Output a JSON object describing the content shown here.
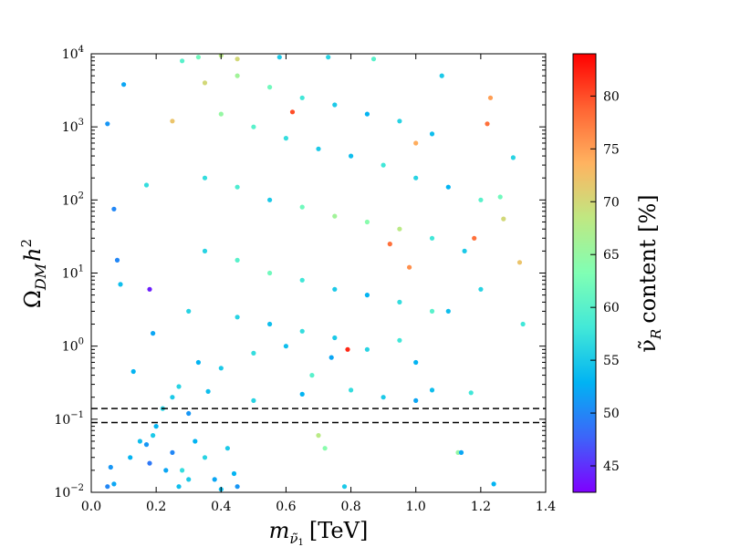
{
  "chart_data": {
    "type": "scatter",
    "title": "",
    "xlabel": "m_ν̃1 [TeV]",
    "ylabel": "Ω_DM h²",
    "xlim": [
      0.0,
      1.4
    ],
    "ylim": [
      0.01,
      10000
    ],
    "yscale": "log",
    "x_ticks": [
      "0.0",
      "0.2",
      "0.4",
      "0.6",
      "0.8",
      "1.0",
      "1.2",
      "1.4"
    ],
    "y_ticks": [
      {
        "base": "10",
        "exp": "−2"
      },
      {
        "base": "10",
        "exp": "−1"
      },
      {
        "base": "10",
        "exp": "0"
      },
      {
        "base": "10",
        "exp": "1"
      },
      {
        "base": "10",
        "exp": "2"
      },
      {
        "base": "10",
        "exp": "3"
      },
      {
        "base": "10",
        "exp": "4"
      }
    ],
    "reference_lines": {
      "style": "dashed",
      "color": "#000000",
      "y": [
        0.09,
        0.14
      ]
    },
    "colorbar": {
      "label": "ν̃R content [%]",
      "range": [
        42.5,
        84
      ],
      "ticks": [
        "45",
        "50",
        "55",
        "60",
        "65",
        "70",
        "75",
        "80"
      ],
      "colormap": "rainbow",
      "colors": [
        "#7f00ff",
        "#3d64f9",
        "#01b3f3",
        "#42e8d8",
        "#80ffb4",
        "#bfe882",
        "#ffb360",
        "#ff6433",
        "#ff0000"
      ]
    },
    "marker": {
      "shape": "circle",
      "edge": "none"
    },
    "points": [
      {
        "x": 0.05,
        "y": 0.012,
        "c": 50
      },
      {
        "x": 0.06,
        "y": 0.022,
        "c": 51
      },
      {
        "x": 0.07,
        "y": 0.013,
        "c": 52
      },
      {
        "x": 0.12,
        "y": 0.03,
        "c": 53
      },
      {
        "x": 0.15,
        "y": 0.05,
        "c": 54
      },
      {
        "x": 0.17,
        "y": 0.045,
        "c": 51
      },
      {
        "x": 0.18,
        "y": 0.025,
        "c": 49
      },
      {
        "x": 0.19,
        "y": 0.06,
        "c": 55
      },
      {
        "x": 0.2,
        "y": 0.08,
        "c": 53
      },
      {
        "x": 0.22,
        "y": 0.14,
        "c": 56
      },
      {
        "x": 0.23,
        "y": 0.02,
        "c": 52
      },
      {
        "x": 0.25,
        "y": 0.035,
        "c": 50
      },
      {
        "x": 0.27,
        "y": 0.012,
        "c": 54
      },
      {
        "x": 0.28,
        "y": 0.02,
        "c": 57
      },
      {
        "x": 0.3,
        "y": 0.015,
        "c": 55
      },
      {
        "x": 0.3,
        "y": 0.12,
        "c": 51
      },
      {
        "x": 0.32,
        "y": 0.05,
        "c": 53
      },
      {
        "x": 0.35,
        "y": 0.03,
        "c": 56
      },
      {
        "x": 0.38,
        "y": 0.015,
        "c": 52
      },
      {
        "x": 0.4,
        "y": 0.011,
        "c": 54
      },
      {
        "x": 0.42,
        "y": 0.04,
        "c": 55
      },
      {
        "x": 0.44,
        "y": 0.018,
        "c": 53
      },
      {
        "x": 0.45,
        "y": 0.012,
        "c": 51
      },
      {
        "x": 0.7,
        "y": 0.06,
        "c": 68
      },
      {
        "x": 0.72,
        "y": 0.04,
        "c": 64
      },
      {
        "x": 0.78,
        "y": 0.012,
        "c": 55
      },
      {
        "x": 1.13,
        "y": 0.035,
        "c": 65
      },
      {
        "x": 1.14,
        "y": 0.035,
        "c": 52
      },
      {
        "x": 1.24,
        "y": 0.013,
        "c": 53
      },
      {
        "x": 0.25,
        "y": 0.2,
        "c": 55
      },
      {
        "x": 0.27,
        "y": 0.28,
        "c": 56
      },
      {
        "x": 0.36,
        "y": 0.24,
        "c": 54
      },
      {
        "x": 0.5,
        "y": 0.18,
        "c": 56
      },
      {
        "x": 0.65,
        "y": 0.22,
        "c": 53
      },
      {
        "x": 0.8,
        "y": 0.25,
        "c": 57
      },
      {
        "x": 0.9,
        "y": 0.2,
        "c": 55
      },
      {
        "x": 1.0,
        "y": 0.18,
        "c": 52
      },
      {
        "x": 1.05,
        "y": 0.25,
        "c": 54
      },
      {
        "x": 1.17,
        "y": 0.23,
        "c": 58
      },
      {
        "x": 0.05,
        "y": 1100,
        "c": 51
      },
      {
        "x": 0.07,
        "y": 75,
        "c": 50
      },
      {
        "x": 0.08,
        "y": 15,
        "c": 50
      },
      {
        "x": 0.09,
        "y": 7,
        "c": 54
      },
      {
        "x": 0.1,
        "y": 3800,
        "c": 52
      },
      {
        "x": 0.18,
        "y": 6,
        "c": 44
      },
      {
        "x": 0.17,
        "y": 160,
        "c": 57
      },
      {
        "x": 0.19,
        "y": 1.5,
        "c": 52
      },
      {
        "x": 0.13,
        "y": 0.45,
        "c": 53
      },
      {
        "x": 0.28,
        "y": 8000,
        "c": 60
      },
      {
        "x": 0.33,
        "y": 9000,
        "c": 62
      },
      {
        "x": 0.4,
        "y": 9500,
        "c": 68
      },
      {
        "x": 0.45,
        "y": 8500,
        "c": 70
      },
      {
        "x": 0.58,
        "y": 9000,
        "c": 55
      },
      {
        "x": 0.73,
        "y": 9000,
        "c": 56
      },
      {
        "x": 0.87,
        "y": 8500,
        "c": 60
      },
      {
        "x": 1.08,
        "y": 5000,
        "c": 55
      },
      {
        "x": 1.23,
        "y": 2500,
        "c": 75
      },
      {
        "x": 1.3,
        "y": 380,
        "c": 56
      },
      {
        "x": 1.32,
        "y": 14,
        "c": 72
      },
      {
        "x": 1.33,
        "y": 2,
        "c": 58
      },
      {
        "x": 1.27,
        "y": 55,
        "c": 70
      },
      {
        "x": 1.26,
        "y": 110,
        "c": 62
      },
      {
        "x": 1.18,
        "y": 30,
        "c": 78
      },
      {
        "x": 1.2,
        "y": 6,
        "c": 56
      },
      {
        "x": 1.1,
        "y": 3,
        "c": 54
      },
      {
        "x": 1.0,
        "y": 0.6,
        "c": 53
      },
      {
        "x": 0.95,
        "y": 1.2,
        "c": 58
      },
      {
        "x": 0.85,
        "y": 0.9,
        "c": 56
      },
      {
        "x": 0.74,
        "y": 0.7,
        "c": 52
      },
      {
        "x": 0.6,
        "y": 1.0,
        "c": 54
      },
      {
        "x": 0.5,
        "y": 0.8,
        "c": 57
      },
      {
        "x": 0.4,
        "y": 0.5,
        "c": 55
      },
      {
        "x": 0.79,
        "y": 0.9,
        "c": 82
      },
      {
        "x": 0.68,
        "y": 0.4,
        "c": 60
      },
      {
        "x": 0.33,
        "y": 0.6,
        "c": 53
      },
      {
        "x": 0.3,
        "y": 3,
        "c": 56
      },
      {
        "x": 0.35,
        "y": 4000,
        "c": 70
      },
      {
        "x": 0.45,
        "y": 5000,
        "c": 66
      },
      {
        "x": 0.55,
        "y": 3500,
        "c": 62
      },
      {
        "x": 0.65,
        "y": 2500,
        "c": 58
      },
      {
        "x": 0.75,
        "y": 2000,
        "c": 55
      },
      {
        "x": 0.85,
        "y": 1500,
        "c": 53
      },
      {
        "x": 0.95,
        "y": 1200,
        "c": 56
      },
      {
        "x": 1.05,
        "y": 800,
        "c": 54
      },
      {
        "x": 0.4,
        "y": 1500,
        "c": 65
      },
      {
        "x": 0.5,
        "y": 1000,
        "c": 60
      },
      {
        "x": 0.6,
        "y": 700,
        "c": 57
      },
      {
        "x": 0.7,
        "y": 500,
        "c": 55
      },
      {
        "x": 0.8,
        "y": 400,
        "c": 54
      },
      {
        "x": 0.9,
        "y": 300,
        "c": 58
      },
      {
        "x": 1.0,
        "y": 200,
        "c": 56
      },
      {
        "x": 1.1,
        "y": 150,
        "c": 53
      },
      {
        "x": 1.2,
        "y": 100,
        "c": 60
      },
      {
        "x": 0.35,
        "y": 200,
        "c": 57
      },
      {
        "x": 0.45,
        "y": 150,
        "c": 59
      },
      {
        "x": 0.55,
        "y": 100,
        "c": 55
      },
      {
        "x": 0.65,
        "y": 80,
        "c": 62
      },
      {
        "x": 0.75,
        "y": 60,
        "c": 66
      },
      {
        "x": 0.85,
        "y": 50,
        "c": 64
      },
      {
        "x": 0.95,
        "y": 40,
        "c": 68
      },
      {
        "x": 1.05,
        "y": 30,
        "c": 58
      },
      {
        "x": 1.15,
        "y": 20,
        "c": 55
      },
      {
        "x": 0.35,
        "y": 20,
        "c": 56
      },
      {
        "x": 0.45,
        "y": 15,
        "c": 60
      },
      {
        "x": 0.55,
        "y": 10,
        "c": 62
      },
      {
        "x": 0.65,
        "y": 8,
        "c": 58
      },
      {
        "x": 0.75,
        "y": 6,
        "c": 55
      },
      {
        "x": 0.85,
        "y": 5,
        "c": 53
      },
      {
        "x": 0.95,
        "y": 4,
        "c": 57
      },
      {
        "x": 1.05,
        "y": 3,
        "c": 60
      },
      {
        "x": 0.45,
        "y": 2.5,
        "c": 56
      },
      {
        "x": 0.55,
        "y": 2,
        "c": 54
      },
      {
        "x": 0.65,
        "y": 1.6,
        "c": 57
      },
      {
        "x": 0.75,
        "y": 1.3,
        "c": 55
      },
      {
        "x": 0.92,
        "y": 25,
        "c": 78
      },
      {
        "x": 0.98,
        "y": 12,
        "c": 76
      },
      {
        "x": 0.62,
        "y": 1600,
        "c": 80
      },
      {
        "x": 1.22,
        "y": 1100,
        "c": 78
      },
      {
        "x": 1.0,
        "y": 600,
        "c": 74
      },
      {
        "x": 0.25,
        "y": 1200,
        "c": 72
      }
    ]
  }
}
